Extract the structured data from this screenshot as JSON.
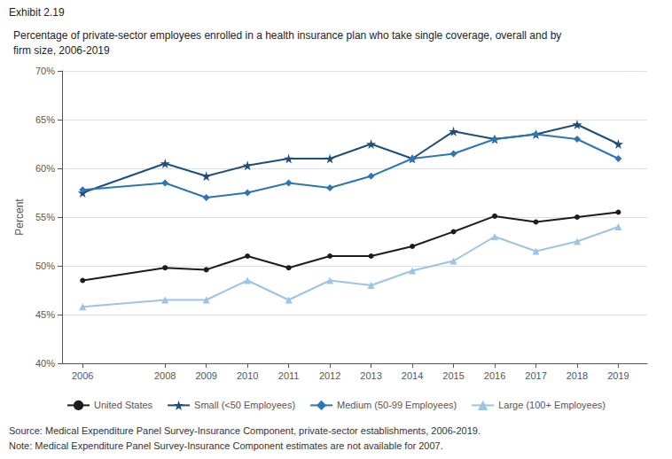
{
  "chart_data": {
    "type": "line",
    "subtitle": "Exhibit 2.19",
    "title": "Percentage of private-sector employees enrolled in a health insurance plan who take single coverage, overall and by\nfirm size, 2006-2019",
    "ylabel": "Percent",
    "annotations": [
      "Source: Medical Expenditure Panel Survey-Insurance Component, private-sector establishments, 2006-2019.",
      "Note: Medical Expenditure Panel Survey-Insurance Component estimates are not available for 2007."
    ],
    "x": [
      2006,
      2008,
      2009,
      2010,
      2011,
      2012,
      2013,
      2014,
      2015,
      2016,
      2017,
      2018,
      2019
    ],
    "xlim": [
      2005.5,
      2019.7
    ],
    "xticks": [
      2006,
      2008,
      2009,
      2010,
      2011,
      2012,
      2013,
      2014,
      2015,
      2016,
      2017,
      2018,
      2019
    ],
    "ylim": [
      40,
      70
    ],
    "yticks": [
      {
        "value": 40,
        "label": "40%"
      },
      {
        "value": 45,
        "label": "45%"
      },
      {
        "value": 50,
        "label": "50%"
      },
      {
        "value": 55,
        "label": "55%"
      },
      {
        "value": 60,
        "label": "60%"
      },
      {
        "value": 65,
        "label": "65%"
      },
      {
        "value": 70,
        "label": "70%"
      }
    ],
    "grid": true,
    "legend": "bottom",
    "series": [
      {
        "name": "United States",
        "color": "#1c1c1c",
        "marker": "circle",
        "values": [
          48.5,
          49.8,
          49.6,
          51.0,
          49.8,
          51.0,
          51.0,
          52.0,
          53.5,
          55.1,
          54.5,
          55.0,
          55.5
        ]
      },
      {
        "name": "Small (<50 Employees)",
        "color": "#1f4e79",
        "marker": "star",
        "values": [
          57.5,
          60.5,
          59.2,
          60.3,
          61.0,
          61.0,
          62.5,
          61.0,
          63.8,
          63.0,
          63.5,
          64.5,
          62.5
        ]
      },
      {
        "name": "Medium (50-99 Employees)",
        "color": "#2e75b6",
        "marker": "diamond",
        "values": [
          57.8,
          58.5,
          57.0,
          57.5,
          58.5,
          58.0,
          59.2,
          61.0,
          61.5,
          63.0,
          63.5,
          63.0,
          61.0
        ]
      },
      {
        "name": "Large (100+ Employees)",
        "color": "#9dc3e6",
        "marker": "triangle",
        "values": [
          45.8,
          46.5,
          46.5,
          48.5,
          46.5,
          48.5,
          48.0,
          49.5,
          50.5,
          53.0,
          51.5,
          52.5,
          54.0
        ]
      }
    ]
  }
}
